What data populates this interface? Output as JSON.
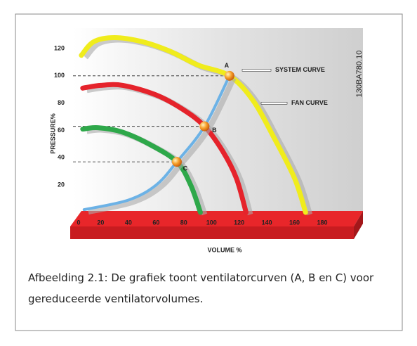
{
  "chart_data": {
    "type": "line",
    "xlabel": "VOLUME %",
    "ylabel": "PRESSURE%",
    "figure_id": "130BA780.10",
    "xlim": [
      0,
      180
    ],
    "ylim": [
      0,
      120
    ],
    "xticks": [
      0,
      20,
      40,
      60,
      80,
      100,
      120,
      140,
      160,
      180
    ],
    "yticks": [
      20,
      40,
      60,
      80,
      100,
      120
    ],
    "series": [
      {
        "name": "FAN CURVE",
        "color": "#f0ec1c",
        "x": [
          6,
          15,
          30,
          50,
          70,
          90,
          113,
          130,
          145,
          160,
          168
        ],
        "values": [
          115,
          125,
          128,
          125,
          118,
          108,
          100,
          82,
          55,
          25,
          0
        ]
      },
      {
        "color": "#e5232b",
        "x": [
          7,
          20,
          36,
          60,
          80,
          95,
          108,
          118,
          125
        ],
        "values": [
          91,
          93,
          93,
          86,
          75,
          63,
          45,
          25,
          0
        ]
      },
      {
        "color": "#2ea84a",
        "x": [
          7,
          18,
          35,
          55,
          75,
          85,
          92
        ],
        "values": [
          61,
          62,
          59,
          50,
          37,
          20,
          0
        ]
      },
      {
        "name": "SYSTEM CURVE",
        "color": "#6cb2e6",
        "x": [
          8,
          40,
          60,
          75,
          95,
          113
        ],
        "values": [
          2,
          9,
          20,
          37,
          63,
          100
        ]
      }
    ],
    "points": [
      {
        "label": "A",
        "x": 113,
        "y": 100
      },
      {
        "label": "B",
        "x": 95,
        "y": 63
      },
      {
        "label": "C",
        "x": 75,
        "y": 37
      }
    ]
  },
  "caption": "Afbeelding 2.1: De grafiek toont ventilatorcurven (A, B en C) voor gereduceerde ventilatorvolumes."
}
